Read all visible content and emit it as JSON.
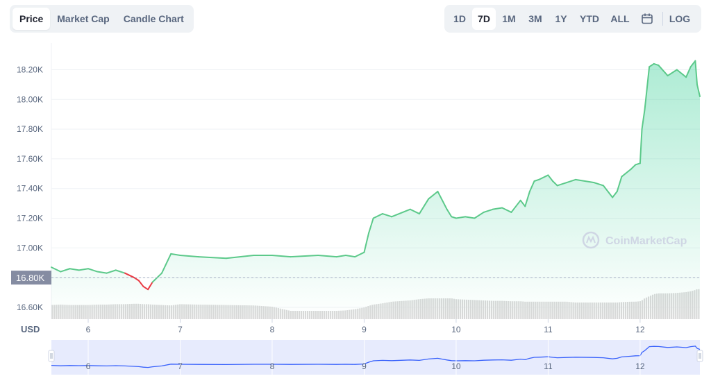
{
  "tabs": [
    {
      "label": "Price",
      "active": true
    },
    {
      "label": "Market Cap",
      "active": false
    },
    {
      "label": "Candle Chart",
      "active": false
    }
  ],
  "ranges": [
    {
      "label": "1D",
      "active": false
    },
    {
      "label": "7D",
      "active": true
    },
    {
      "label": "1M",
      "active": false
    },
    {
      "label": "3M",
      "active": false
    },
    {
      "label": "1Y",
      "active": false
    },
    {
      "label": "YTD",
      "active": false
    },
    {
      "label": "ALL",
      "active": false
    }
  ],
  "calendar_icon": "calendar-icon",
  "log_label": "LOG",
  "currency_label": "USD",
  "watermark": "CoinMarketCap",
  "colors": {
    "up": "#16c784",
    "up_line": "#5cc98a",
    "down": "#ea3943",
    "volume": "#d9d9d9",
    "navigator_line": "#3861fb",
    "navigator_fill": "#e7ebfd"
  },
  "chart_data": {
    "type": "area",
    "title": "",
    "xlabel": "",
    "ylabel": "USD",
    "xlim": [
      5.6,
      12.65
    ],
    "ylim": [
      16.52,
      18.38
    ],
    "y_ticks": [
      "16.60K",
      "16.80K",
      "17.00K",
      "17.20K",
      "17.40K",
      "17.60K",
      "17.80K",
      "18.00K",
      "18.20K"
    ],
    "y_tick_values": [
      16.6,
      16.8,
      17.0,
      17.2,
      17.4,
      17.6,
      17.8,
      18.0,
      18.2
    ],
    "x_ticks": [
      "6",
      "7",
      "8",
      "9",
      "10",
      "11",
      "12"
    ],
    "x_tick_values": [
      6,
      7,
      8,
      9,
      10,
      11,
      12
    ],
    "reference_value": 16.8,
    "reference_label": "16.80K",
    "grid": true,
    "legend": "none",
    "series": [
      {
        "values_unit": "K USD",
        "x": [
          5.6,
          5.7,
          5.8,
          5.9,
          6.0,
          6.1,
          6.2,
          6.3,
          6.4,
          6.5,
          6.55,
          6.6,
          6.65,
          6.7,
          6.8,
          6.9,
          7.0,
          7.2,
          7.5,
          7.8,
          8.0,
          8.2,
          8.5,
          8.7,
          8.8,
          8.9,
          9.0,
          9.05,
          9.1,
          9.2,
          9.3,
          9.5,
          9.6,
          9.7,
          9.8,
          9.9,
          9.95,
          10.0,
          10.1,
          10.2,
          10.3,
          10.4,
          10.5,
          10.6,
          10.7,
          10.75,
          10.8,
          10.85,
          10.9,
          11.0,
          11.05,
          11.1,
          11.2,
          11.3,
          11.5,
          11.6,
          11.7,
          11.75,
          11.8,
          11.9,
          11.95,
          12.0,
          12.02,
          12.05,
          12.1,
          12.15,
          12.2,
          12.3,
          12.4,
          12.5,
          12.55,
          12.6,
          12.62,
          12.65
        ],
        "values": [
          16.87,
          16.84,
          16.86,
          16.85,
          16.86,
          16.84,
          16.83,
          16.85,
          16.83,
          16.8,
          16.78,
          16.74,
          16.72,
          16.77,
          16.83,
          16.96,
          16.95,
          16.94,
          16.93,
          16.95,
          16.95,
          16.94,
          16.95,
          16.94,
          16.95,
          16.94,
          16.97,
          17.1,
          17.2,
          17.23,
          17.21,
          17.26,
          17.23,
          17.33,
          17.38,
          17.26,
          17.21,
          17.2,
          17.21,
          17.2,
          17.24,
          17.26,
          17.27,
          17.24,
          17.32,
          17.28,
          17.38,
          17.45,
          17.46,
          17.49,
          17.45,
          17.42,
          17.44,
          17.46,
          17.44,
          17.42,
          17.34,
          17.38,
          17.48,
          17.53,
          17.56,
          17.57,
          17.8,
          17.93,
          18.22,
          18.24,
          18.23,
          18.16,
          18.2,
          18.15,
          18.22,
          18.26,
          18.1,
          18.02
        ],
        "volume": [
          0.34,
          0.35,
          0.34,
          0.34,
          0.34,
          0.35,
          0.35,
          0.36,
          0.36,
          0.37,
          0.37,
          0.36,
          0.36,
          0.35,
          0.34,
          0.33,
          0.36,
          0.35,
          0.34,
          0.33,
          0.3,
          0.2,
          0.2,
          0.2,
          0.21,
          0.24,
          0.28,
          0.32,
          0.35,
          0.38,
          0.42,
          0.45,
          0.48,
          0.5,
          0.5,
          0.5,
          0.5,
          0.48,
          0.47,
          0.46,
          0.45,
          0.44,
          0.44,
          0.43,
          0.43,
          0.42,
          0.42,
          0.42,
          0.42,
          0.42,
          0.42,
          0.42,
          0.42,
          0.4,
          0.4,
          0.4,
          0.4,
          0.4,
          0.41,
          0.42,
          0.42,
          0.43,
          0.45,
          0.5,
          0.55,
          0.6,
          0.62,
          0.62,
          0.63,
          0.65,
          0.67,
          0.7,
          0.72,
          0.72
        ],
        "down_range": [
          6.4,
          6.72
        ]
      }
    ]
  }
}
